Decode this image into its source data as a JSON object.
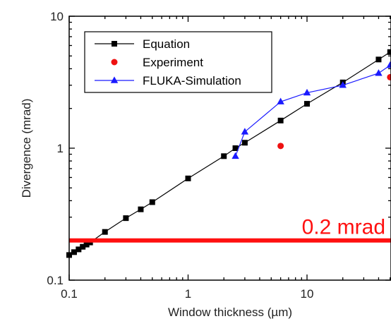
{
  "chart_data": {
    "type": "scatter",
    "xlabel": "Window thickness (µm)",
    "ylabel": "Divergence (mrad)",
    "x_scale": "log",
    "y_scale": "log",
    "xlim": [
      0.1,
      50
    ],
    "ylim": [
      0.1,
      10
    ],
    "x_ticks": [
      {
        "value": 0.1,
        "label": "0.1"
      },
      {
        "value": 1,
        "label": "1"
      },
      {
        "value": 10,
        "label": "10"
      }
    ],
    "y_ticks": [
      {
        "value": 0.1,
        "label": "0.1"
      },
      {
        "value": 1,
        "label": "1"
      },
      {
        "value": 10,
        "label": "10"
      }
    ],
    "grid": false,
    "legend_position": "top-left",
    "series": [
      {
        "name": "Equation",
        "color": "#000000",
        "marker": "square",
        "line": true,
        "x": [
          0.1,
          0.11,
          0.12,
          0.13,
          0.14,
          0.15,
          0.2,
          0.3,
          0.4,
          0.5,
          1,
          2,
          2.5,
          3,
          6,
          10,
          20,
          40,
          50
        ],
        "y": [
          0.155,
          0.163,
          0.171,
          0.179,
          0.186,
          0.193,
          0.232,
          0.295,
          0.344,
          0.39,
          0.59,
          0.87,
          1.0,
          1.1,
          1.62,
          2.17,
          3.15,
          4.7,
          5.35
        ]
      },
      {
        "name": "Experiment",
        "color": "#ee1111",
        "marker": "circle",
        "line": false,
        "x": [
          6,
          50
        ],
        "y": [
          1.04,
          3.45
        ]
      },
      {
        "name": "FLUKA-Simulation",
        "color": "#1a1aff",
        "marker": "triangle",
        "line": true,
        "x": [
          2.5,
          3,
          6,
          10,
          20,
          40,
          50
        ],
        "y": [
          0.87,
          1.33,
          2.25,
          2.63,
          3.0,
          3.7,
          4.25
        ]
      }
    ],
    "annotations": [
      {
        "type": "hline",
        "y": 0.2,
        "color": "#ff1010",
        "label": "0.2 mrad"
      }
    ]
  }
}
